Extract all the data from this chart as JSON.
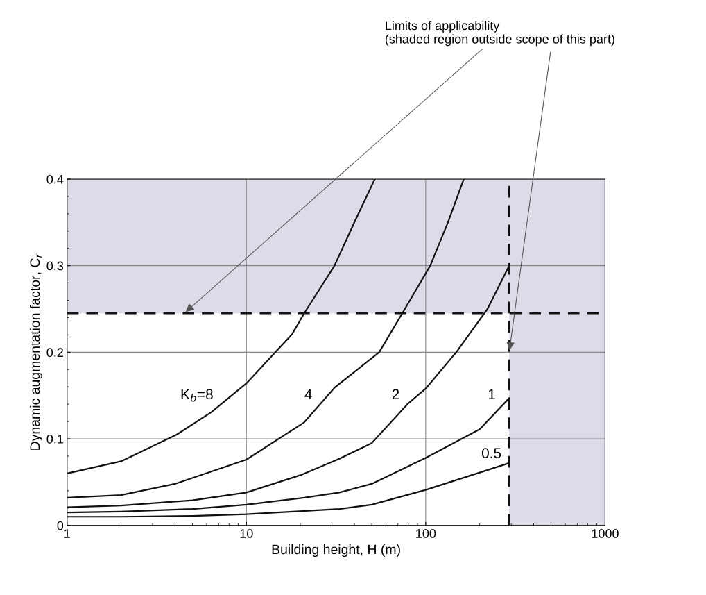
{
  "chart_data": {
    "type": "line",
    "xlabel": "Building height, H (m)",
    "ylabel": "Dynamic augmentation factor, C$_{r}$",
    "log": "x",
    "xlim": [
      1,
      1000
    ],
    "xticks": [
      1,
      10,
      100,
      1000
    ],
    "ylim": [
      0,
      0.4
    ],
    "yticks": [
      0,
      0.1,
      0.2,
      0.3,
      0.4
    ],
    "grid": true,
    "marker": "none",
    "line_style": "solid",
    "series": [
      {
        "name": "K$_{b}$=8",
        "color": "#111111",
        "x": [
          1,
          2,
          4.1,
          6.4,
          10,
          18,
          21,
          31,
          40,
          52
        ],
        "values": [
          0.06,
          0.074,
          0.105,
          0.131,
          0.164,
          0.221,
          0.245,
          0.3,
          0.35,
          0.4
        ]
      },
      {
        "name": "4",
        "color": "#111111",
        "x": [
          1,
          2,
          4,
          10,
          21,
          31,
          55,
          76,
          106,
          133,
          163
        ],
        "values": [
          0.032,
          0.035,
          0.048,
          0.076,
          0.119,
          0.159,
          0.2,
          0.249,
          0.3,
          0.35,
          0.4
        ]
      },
      {
        "name": "2",
        "color": "#111111",
        "x": [
          1,
          2,
          5,
          10,
          20,
          33,
          50,
          79,
          100,
          148,
          221,
          292
        ],
        "values": [
          0.021,
          0.023,
          0.029,
          0.038,
          0.058,
          0.077,
          0.095,
          0.14,
          0.158,
          0.2,
          0.25,
          0.3
        ]
      },
      {
        "name": "1",
        "color": "#111111",
        "x": [
          1,
          2,
          5,
          10,
          21,
          33,
          50,
          100,
          200,
          292
        ],
        "values": [
          0.015,
          0.016,
          0.019,
          0.024,
          0.032,
          0.038,
          0.048,
          0.078,
          0.111,
          0.147
        ]
      },
      {
        "name": "0.5",
        "color": "#111111",
        "x": [
          1,
          2,
          5,
          10,
          33,
          50,
          100,
          200,
          292
        ],
        "values": [
          0.01,
          0.01,
          0.011,
          0.013,
          0.019,
          0.024,
          0.041,
          0.061,
          0.072
        ]
      }
    ],
    "ref_lines": [
      {
        "axis": "y",
        "value": 0.245,
        "line_style": "dashed",
        "color": "#111111"
      },
      {
        "axis": "x",
        "value": 292,
        "line_style": "dashed",
        "color": "#111111"
      }
    ],
    "bands": [
      {
        "axis": "y",
        "from": 0.245,
        "to": 0.4,
        "color": "#dcdce8"
      },
      {
        "axis": "x",
        "from": 292,
        "to": 1000,
        "color": "#dcdce8"
      }
    ],
    "annotations": [
      {
        "text": "Limits of applicability\n(shaded region outside scope of this part)",
        "x": 4.5,
        "y": 0.245
      }
    ]
  }
}
